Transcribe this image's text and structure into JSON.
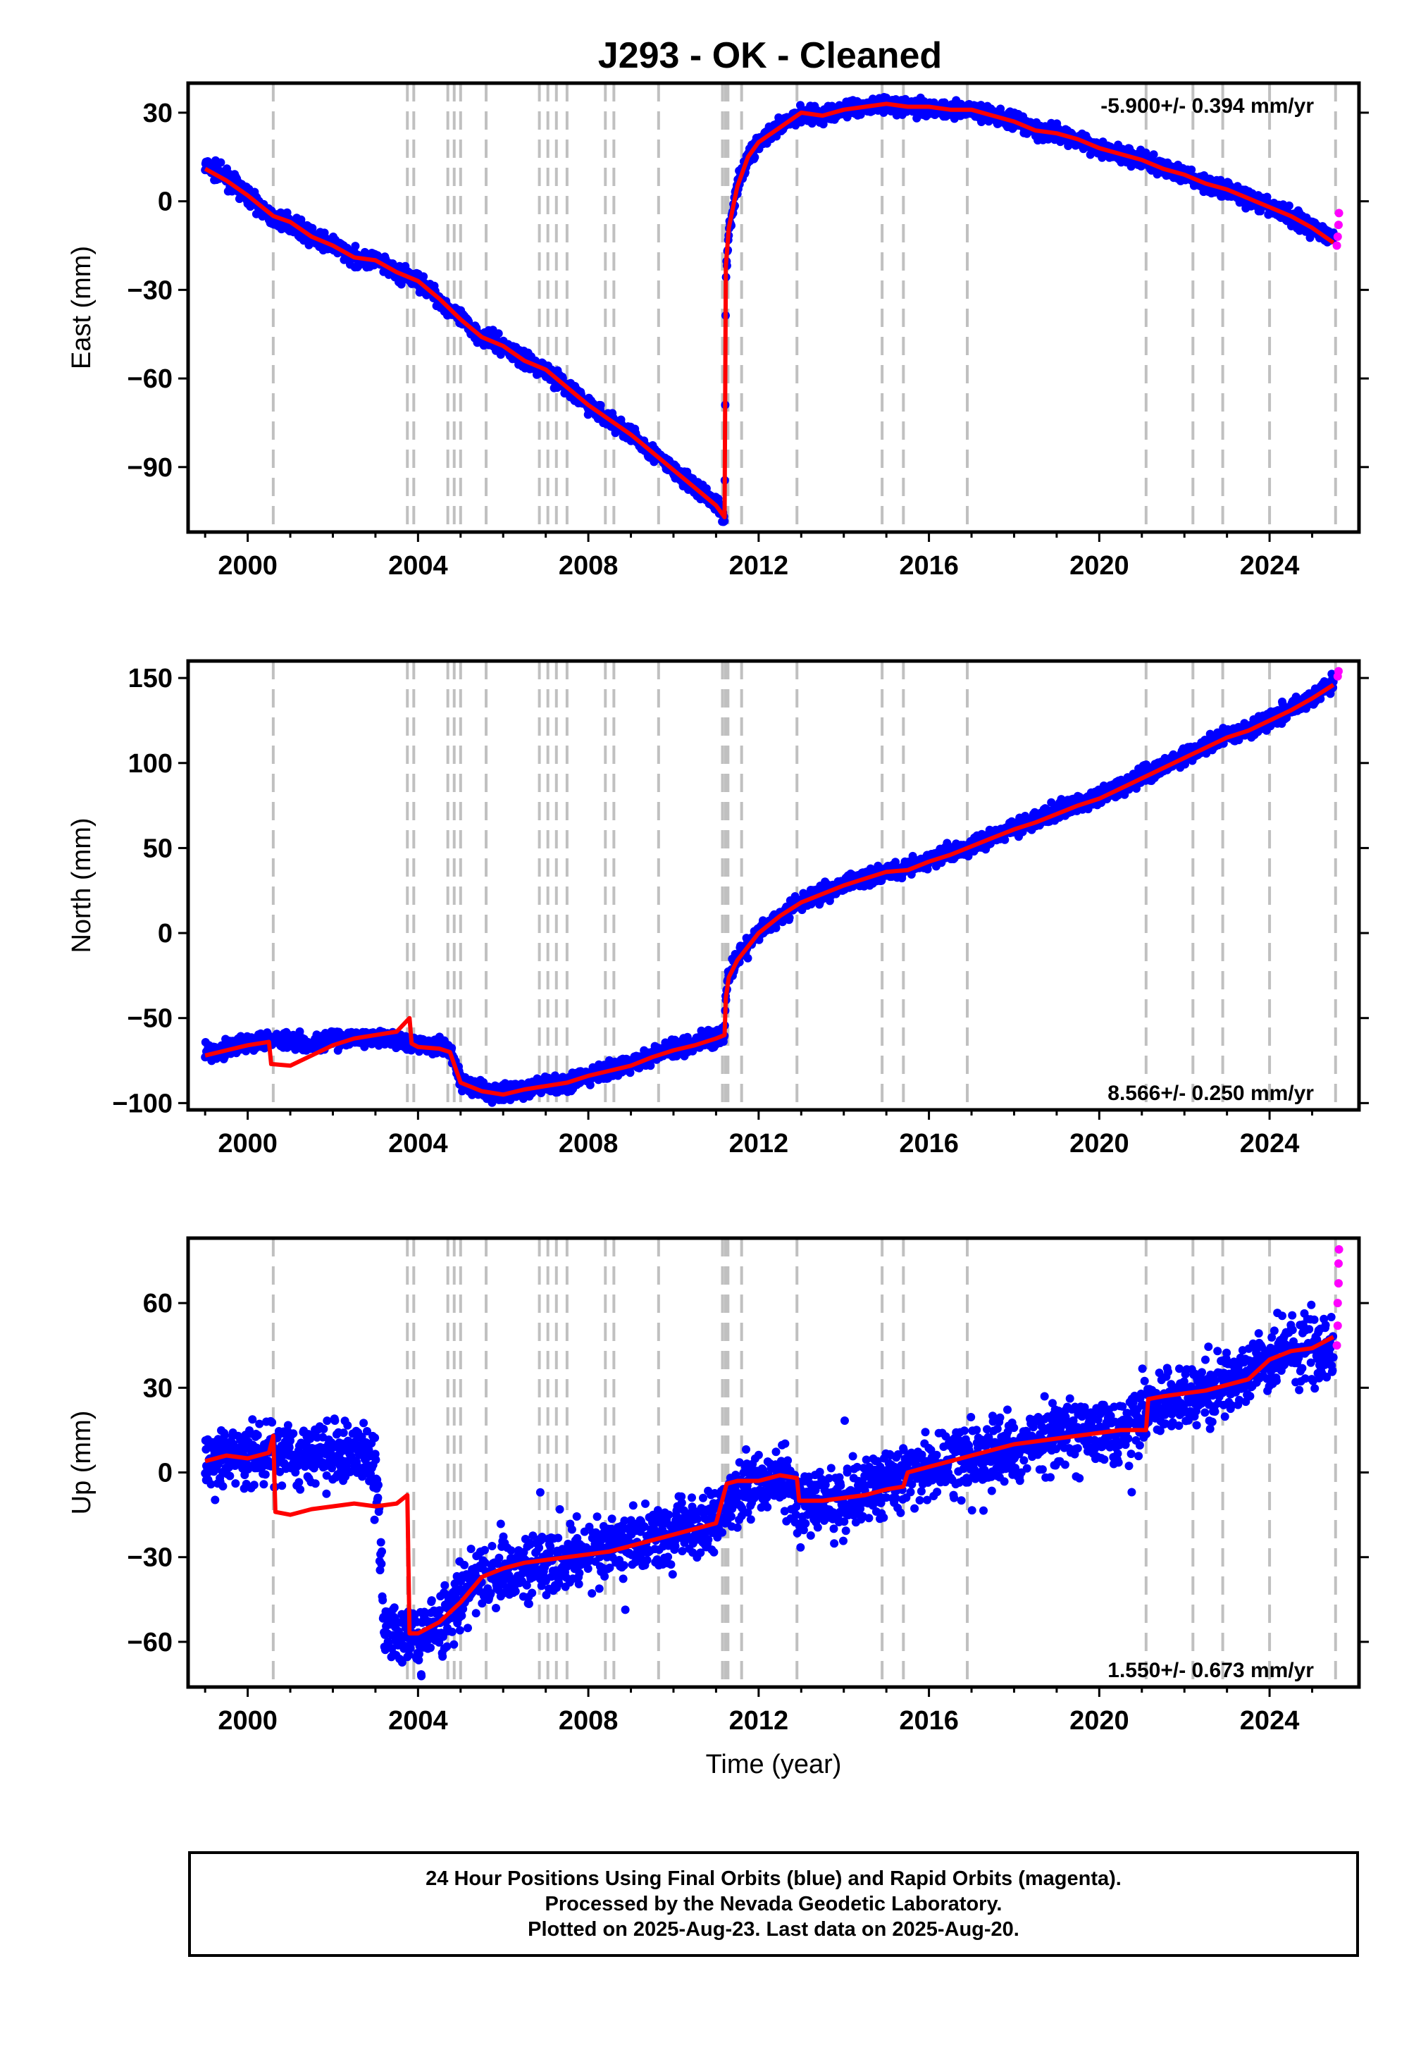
{
  "title": "J293  - OK - Cleaned",
  "colors": {
    "final_orbits": "#0000ff",
    "rapid_orbits": "#ff00ff",
    "model": "#ff0000",
    "event_lines": "#c0c0c0"
  },
  "caption": {
    "line1": "24 Hour Positions Using Final Orbits (blue) and Rapid Orbits (magenta).",
    "line2": "Processed by the Nevada Geodetic Laboratory.",
    "line3": "Plotted on 2025-Aug-23. Last data on 2025-Aug-20."
  },
  "chart_data": [
    {
      "type": "scatter",
      "id": "east",
      "ylabel": "East (mm)",
      "rate": "-5.900+/- 0.394 mm/yr",
      "rate_placement": "top-right",
      "xlim": [
        1998.6,
        2026.1
      ],
      "ylim": [
        -112,
        40
      ],
      "yticks": [
        30,
        0,
        -30,
        -60,
        -90
      ],
      "xticks": [
        2000,
        2004,
        2008,
        2012,
        2016,
        2020,
        2024
      ],
      "event_lines": [
        2000.6,
        2003.75,
        2003.9,
        2004.7,
        2004.85,
        2005.0,
        2005.6,
        2006.85,
        2007.05,
        2007.25,
        2007.5,
        2008.4,
        2008.6,
        2009.65,
        2011.15,
        2011.22,
        2011.28,
        2011.6,
        2012.9,
        2014.9,
        2015.4,
        2016.9,
        2021.1,
        2022.2,
        2022.9,
        2024.0,
        2025.55
      ],
      "series": [
        {
          "role": "final",
          "x": [
            1999.0,
            1999.5,
            2000.0,
            2000.6,
            2001.0,
            2001.5,
            2002.0,
            2002.5,
            2003.0,
            2003.5,
            2004.0,
            2004.5,
            2005.0,
            2005.5,
            2006.0,
            2006.5,
            2007.0,
            2007.5,
            2008.0,
            2008.5,
            2009.0,
            2009.5,
            2010.0,
            2010.5,
            2011.0,
            2011.2,
            2011.23,
            2011.3,
            2011.5,
            2011.75,
            2012.0,
            2012.5,
            2013.0,
            2013.5,
            2014.0,
            2014.5,
            2015.0,
            2015.5,
            2016.0,
            2016.5,
            2017.0,
            2017.5,
            2018.0,
            2018.5,
            2019.0,
            2019.5,
            2020.0,
            2020.5,
            2021.0,
            2021.5,
            2022.0,
            2022.5,
            2023.0,
            2023.5,
            2024.0,
            2024.5,
            2025.0,
            2025.5
          ],
          "y": [
            12,
            8,
            2,
            -6,
            -7,
            -12,
            -15,
            -19,
            -20,
            -24,
            -27,
            -33,
            -40,
            -46,
            -49,
            -54,
            -57,
            -63,
            -69,
            -74,
            -79,
            -85,
            -91,
            -97,
            -102,
            -108,
            -25,
            -10,
            5,
            15,
            20,
            25,
            30,
            29,
            31,
            32,
            33,
            32,
            32,
            31,
            31,
            29,
            27,
            24,
            23,
            21,
            18,
            16,
            14,
            11,
            9,
            6,
            4,
            1,
            -2,
            -5,
            -9,
            -12
          ]
        },
        {
          "role": "rapid",
          "x": [
            2025.58,
            2025.6,
            2025.62,
            2025.63
          ],
          "y": [
            -15,
            -12,
            -8,
            -4
          ]
        },
        {
          "role": "model",
          "x": [
            1999.0,
            1999.5,
            2000.0,
            2000.6,
            2001.0,
            2001.5,
            2002.0,
            2002.5,
            2003.0,
            2003.5,
            2004.0,
            2004.5,
            2005.0,
            2005.5,
            2006.0,
            2006.5,
            2007.0,
            2007.5,
            2008.0,
            2008.5,
            2009.0,
            2009.5,
            2010.0,
            2010.5,
            2011.0,
            2011.2,
            2011.23,
            2011.3,
            2011.5,
            2011.75,
            2012.0,
            2012.5,
            2013.0,
            2013.5,
            2014.0,
            2014.5,
            2015.0,
            2015.5,
            2016.0,
            2016.5,
            2017.0,
            2017.5,
            2018.0,
            2018.5,
            2019.0,
            2019.5,
            2020.0,
            2020.5,
            2021.0,
            2021.5,
            2022.0,
            2022.5,
            2023.0,
            2023.5,
            2024.0,
            2024.5,
            2025.0,
            2025.5
          ],
          "y": [
            11,
            7,
            2,
            -5,
            -7,
            -12,
            -15,
            -19,
            -20,
            -24,
            -27,
            -33,
            -40,
            -46,
            -49,
            -54,
            -57,
            -63,
            -69,
            -74,
            -79,
            -85,
            -91,
            -97,
            -103,
            -107,
            -22,
            -9,
            5,
            15,
            20,
            25,
            30,
            29,
            31,
            32,
            33,
            32,
            32,
            31,
            31,
            29,
            27,
            24,
            23,
            21,
            18,
            16,
            14,
            11,
            9,
            6,
            4,
            1,
            -2,
            -5,
            -9,
            -14
          ]
        }
      ]
    },
    {
      "type": "scatter",
      "id": "north",
      "ylabel": "North (mm)",
      "rate": "8.566+/- 0.250 mm/yr",
      "rate_placement": "bottom-right",
      "xlim": [
        1998.6,
        2026.1
      ],
      "ylim": [
        -104,
        160
      ],
      "yticks": [
        150,
        100,
        50,
        0,
        -50,
        -100
      ],
      "xticks": [
        2000,
        2004,
        2008,
        2012,
        2016,
        2020,
        2024
      ],
      "event_lines": [
        2000.6,
        2003.75,
        2003.9,
        2004.7,
        2004.85,
        2005.0,
        2005.6,
        2006.85,
        2007.05,
        2007.25,
        2007.5,
        2008.4,
        2008.6,
        2009.65,
        2011.15,
        2011.22,
        2011.28,
        2011.6,
        2012.9,
        2014.9,
        2015.4,
        2016.9,
        2021.1,
        2022.2,
        2022.9,
        2024.0,
        2025.55
      ],
      "series": [
        {
          "role": "final",
          "x": [
            1999.0,
            1999.5,
            2000.0,
            2000.5,
            2001.0,
            2001.5,
            2002.0,
            2002.5,
            2003.0,
            2003.5,
            2004.0,
            2004.5,
            2004.75,
            2005.0,
            2005.5,
            2006.0,
            2006.5,
            2007.0,
            2007.5,
            2008.0,
            2008.5,
            2009.0,
            2009.5,
            2010.0,
            2010.5,
            2011.0,
            2011.2,
            2011.23,
            2011.3,
            2011.5,
            2012.0,
            2012.5,
            2013.0,
            2013.5,
            2014.0,
            2014.5,
            2015.0,
            2015.5,
            2016.0,
            2016.5,
            2017.0,
            2017.5,
            2018.0,
            2018.5,
            2019.0,
            2019.5,
            2020.0,
            2020.5,
            2021.0,
            2021.5,
            2022.0,
            2022.5,
            2023.0,
            2023.5,
            2024.0,
            2024.5,
            2025.0,
            2025.5
          ],
          "y": [
            -70,
            -68,
            -64,
            -62,
            -63,
            -65,
            -63,
            -62,
            -62,
            -63,
            -65,
            -66,
            -68,
            -88,
            -93,
            -94,
            -92,
            -89,
            -88,
            -84,
            -81,
            -77,
            -72,
            -68,
            -65,
            -62,
            -60,
            -36,
            -25,
            -15,
            0,
            10,
            18,
            24,
            28,
            33,
            37,
            38,
            43,
            47,
            52,
            57,
            62,
            66,
            72,
            76,
            80,
            86,
            92,
            98,
            104,
            110,
            116,
            120,
            126,
            132,
            139,
            147
          ]
        },
        {
          "role": "rapid",
          "x": [
            2025.6,
            2025.62
          ],
          "y": [
            151,
            154
          ]
        },
        {
          "role": "model",
          "x": [
            1999.0,
            1999.5,
            2000.0,
            2000.5,
            2000.55,
            2001.0,
            2001.5,
            2002.0,
            2002.5,
            2003.0,
            2003.5,
            2003.8,
            2003.85,
            2004.0,
            2004.5,
            2004.75,
            2005.0,
            2005.5,
            2006.0,
            2006.5,
            2007.0,
            2007.5,
            2008.0,
            2008.5,
            2009.0,
            2009.5,
            2010.0,
            2010.5,
            2011.0,
            2011.2,
            2011.23,
            2011.3,
            2011.5,
            2012.0,
            2012.5,
            2013.0,
            2013.5,
            2014.0,
            2014.5,
            2015.0,
            2015.5,
            2016.0,
            2016.5,
            2017.0,
            2017.5,
            2018.0,
            2018.5,
            2019.0,
            2019.5,
            2020.0,
            2020.5,
            2021.0,
            2021.5,
            2022.0,
            2022.5,
            2023.0,
            2023.5,
            2024.0,
            2024.5,
            2025.0,
            2025.5
          ],
          "y": [
            -72,
            -69,
            -66,
            -64,
            -77,
            -78,
            -72,
            -66,
            -62,
            -60,
            -58,
            -50,
            -65,
            -67,
            -68,
            -70,
            -88,
            -93,
            -95,
            -92,
            -90,
            -88,
            -84,
            -81,
            -78,
            -73,
            -69,
            -66,
            -62,
            -60,
            -38,
            -26,
            -16,
            0,
            10,
            18,
            23,
            28,
            32,
            36,
            37,
            42,
            46,
            51,
            56,
            61,
            65,
            70,
            75,
            79,
            85,
            91,
            97,
            103,
            109,
            115,
            119,
            125,
            131,
            138,
            146
          ]
        }
      ]
    },
    {
      "type": "scatter",
      "id": "up",
      "ylabel": "Up (mm)",
      "xlabel": "Time (year)",
      "rate": "1.550+/- 0.673 mm/yr",
      "rate_placement": "bottom-right",
      "xlim": [
        1998.6,
        2026.1
      ],
      "ylim": [
        -76,
        83
      ],
      "yticks": [
        60,
        30,
        0,
        -30,
        -60
      ],
      "xticks": [
        2000,
        2004,
        2008,
        2012,
        2016,
        2020,
        2024
      ],
      "event_lines": [
        2000.6,
        2003.75,
        2003.9,
        2004.7,
        2004.85,
        2005.0,
        2005.6,
        2006.85,
        2007.05,
        2007.25,
        2007.5,
        2008.4,
        2008.6,
        2009.65,
        2011.15,
        2011.22,
        2011.28,
        2011.6,
        2012.9,
        2014.9,
        2015.4,
        2016.9,
        2021.1,
        2022.2,
        2022.9,
        2024.0,
        2025.55
      ],
      "series": [
        {
          "role": "final",
          "x": [
            1999.0,
            1999.5,
            2000.0,
            2000.5,
            2001.0,
            2001.5,
            2002.0,
            2002.5,
            2003.0,
            2003.2,
            2003.5,
            2004.0,
            2004.5,
            2005.0,
            2005.5,
            2006.0,
            2006.5,
            2007.0,
            2007.5,
            2008.0,
            2008.5,
            2009.0,
            2009.5,
            2010.0,
            2010.5,
            2011.0,
            2011.5,
            2012.0,
            2012.5,
            2013.0,
            2013.5,
            2014.0,
            2014.5,
            2015.0,
            2015.5,
            2016.0,
            2016.5,
            2017.0,
            2017.5,
            2018.0,
            2018.5,
            2019.0,
            2019.5,
            2020.0,
            2020.5,
            2021.0,
            2021.5,
            2022.0,
            2022.5,
            2023.0,
            2023.5,
            2024.0,
            2024.5,
            2025.0,
            2025.5
          ],
          "y": [
            5,
            6,
            4,
            8,
            6,
            7,
            8,
            7,
            6,
            -55,
            -57,
            -58,
            -54,
            -45,
            -38,
            -35,
            -33,
            -32,
            -30,
            -28,
            -27,
            -25,
            -23,
            -21,
            -19,
            -16,
            -6,
            -4,
            -2,
            -10,
            -10,
            -9,
            -6,
            -4,
            0,
            1,
            3,
            5,
            7,
            9,
            11,
            13,
            14,
            15,
            16,
            20,
            24,
            27,
            29,
            31,
            34,
            40,
            45,
            44,
            42
          ]
        },
        {
          "role": "rapid",
          "x": [
            2025.58,
            2025.6,
            2025.6,
            2025.62,
            2025.62,
            2025.63
          ],
          "y": [
            45,
            52,
            60,
            67,
            74,
            79
          ]
        },
        {
          "role": "model",
          "x": [
            1999.0,
            1999.5,
            2000.0,
            2000.5,
            2000.6,
            2000.65,
            2001.0,
            2001.5,
            2002.0,
            2002.5,
            2003.0,
            2003.5,
            2003.75,
            2003.8,
            2004.0,
            2004.5,
            2005.0,
            2005.5,
            2006.0,
            2006.5,
            2007.0,
            2007.5,
            2008.0,
            2008.5,
            2009.0,
            2009.5,
            2010.0,
            2010.5,
            2011.0,
            2011.25,
            2011.5,
            2012.0,
            2012.5,
            2012.9,
            2012.95,
            2013.5,
            2014.0,
            2014.5,
            2015.0,
            2015.4,
            2015.5,
            2016.0,
            2016.5,
            2017.0,
            2017.5,
            2018.0,
            2018.5,
            2019.0,
            2019.5,
            2020.0,
            2020.5,
            2021.1,
            2021.15,
            2021.5,
            2022.0,
            2022.5,
            2023.0,
            2023.5,
            2024.0,
            2024.5,
            2025.0,
            2025.5
          ],
          "y": [
            4,
            6,
            5,
            7,
            13,
            -14,
            -15,
            -13,
            -12,
            -11,
            -12,
            -11,
            -8,
            -57,
            -57,
            -53,
            -46,
            -37,
            -34,
            -32,
            -31,
            -30,
            -29,
            -28,
            -26,
            -24,
            -22,
            -20,
            -18,
            -4,
            -3,
            -3,
            -1,
            -2,
            -10,
            -10,
            -9,
            -8,
            -6,
            -5,
            0,
            2,
            4,
            6,
            8,
            10,
            11,
            12,
            13,
            14,
            15,
            15,
            26,
            27,
            28,
            29,
            31,
            33,
            40,
            43,
            44,
            48
          ]
        }
      ]
    }
  ]
}
